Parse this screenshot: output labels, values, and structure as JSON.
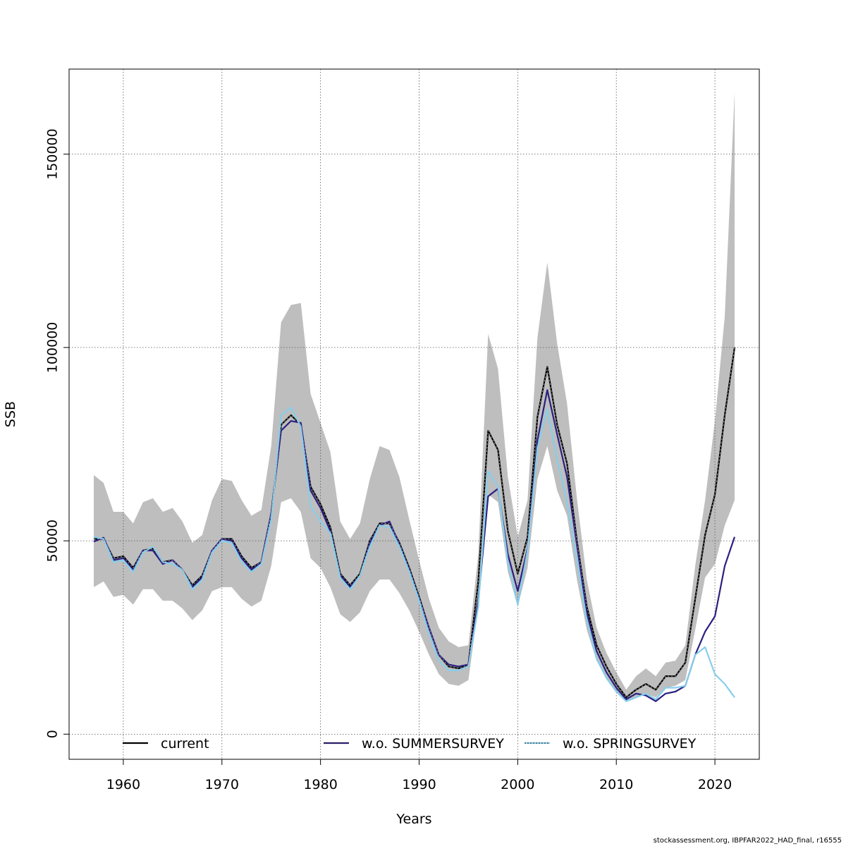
{
  "chart_data": {
    "type": "line",
    "title": "",
    "xlabel": "Years",
    "ylabel": "SSB",
    "xlim": [
      1954.5,
      2024.5
    ],
    "ylim": [
      -6500,
      172000
    ],
    "grid": true,
    "x_ticks": [
      1960,
      1970,
      1980,
      1990,
      2000,
      2010,
      2020
    ],
    "y_ticks": [
      0,
      50000,
      100000,
      150000
    ],
    "y_tick_labels": [
      "0",
      "50000",
      "100000",
      "150000"
    ],
    "legend_position": "bottom",
    "x": [
      1957,
      1958,
      1959,
      1960,
      1961,
      1962,
      1963,
      1964,
      1965,
      1966,
      1967,
      1968,
      1969,
      1970,
      1971,
      1972,
      1973,
      1974,
      1975,
      1976,
      1977,
      1978,
      1979,
      1980,
      1981,
      1982,
      1983,
      1984,
      1985,
      1986,
      1987,
      1988,
      1989,
      1990,
      1991,
      1992,
      1993,
      1994,
      1995,
      1996,
      1997,
      1998,
      1999,
      2000,
      2001,
      2002,
      2003,
      2004,
      2005,
      2006,
      2007,
      2008,
      2009,
      2010,
      2011,
      2012,
      2013,
      2014,
      2015,
      2016,
      2017,
      2018,
      2019,
      2020,
      2021,
      2022
    ],
    "confidence_band": {
      "name": "current",
      "color": "#bebebe",
      "upper": [
        67000,
        65000,
        57500,
        57500,
        54500,
        60000,
        61000,
        57500,
        58500,
        55000,
        49500,
        51500,
        60500,
        66000,
        65500,
        60500,
        56500,
        58000,
        74500,
        106500,
        111000,
        111500,
        88000,
        80500,
        73000,
        55000,
        50500,
        54500,
        66000,
        74500,
        73500,
        66500,
        55500,
        45000,
        35000,
        27500,
        24000,
        22500,
        23000,
        46500,
        103500,
        94500,
        66500,
        51000,
        60500,
        102500,
        122000,
        101000,
        85500,
        61000,
        40000,
        27500,
        21000,
        16000,
        11500,
        15000,
        17000,
        15000,
        18500,
        19000,
        23000,
        43500,
        60500,
        81000,
        108000,
        166000
      ],
      "lower": [
        38000,
        39500,
        35500,
        36000,
        33500,
        37500,
        37500,
        34500,
        34500,
        32500,
        29500,
        32000,
        37000,
        38000,
        38000,
        35000,
        33000,
        34500,
        43500,
        60000,
        61000,
        57500,
        45500,
        43000,
        38000,
        31000,
        29000,
        31500,
        37000,
        40000,
        40000,
        36500,
        32000,
        26500,
        20500,
        15500,
        13000,
        12500,
        14000,
        33000,
        62000,
        60000,
        42000,
        33000,
        43000,
        66000,
        74500,
        63000,
        56500,
        40000,
        27000,
        19000,
        14500,
        11000,
        8500,
        9500,
        10500,
        9500,
        12000,
        12500,
        14000,
        27000,
        40500,
        44000,
        54000,
        60500
      ]
    },
    "series": [
      {
        "name": "current",
        "color": "#000000",
        "values": [
          50500,
          50500,
          45500,
          46000,
          43000,
          47500,
          48000,
          44500,
          45000,
          42500,
          38500,
          41000,
          47500,
          50500,
          50500,
          46000,
          43000,
          44500,
          57000,
          80000,
          82500,
          80000,
          64000,
          59500,
          53500,
          41500,
          38500,
          41500,
          50000,
          54500,
          54500,
          49500,
          43000,
          35500,
          27500,
          20500,
          17500,
          17000,
          18000,
          39500,
          78500,
          73500,
          52500,
          41500,
          51000,
          82000,
          95000,
          80000,
          70000,
          50000,
          33000,
          23000,
          17500,
          13000,
          9500,
          11500,
          13000,
          11500,
          15000,
          15000,
          18500,
          35000,
          51500,
          62000,
          82500,
          100000
        ]
      },
      {
        "name": "w.o. SUMMERSURVEY",
        "color": "#2b1f80",
        "values": [
          49800,
          50800,
          45000,
          45500,
          42500,
          47500,
          47500,
          44000,
          45000,
          42500,
          38000,
          40500,
          47500,
          50500,
          50000,
          45500,
          42500,
          44500,
          57000,
          78500,
          81000,
          80500,
          63000,
          58500,
          52500,
          41000,
          38000,
          41000,
          49500,
          54000,
          55000,
          49000,
          42500,
          35000,
          27500,
          20500,
          18000,
          17500,
          18000,
          34500,
          61500,
          63500,
          46500,
          37000,
          48000,
          76000,
          89000,
          77500,
          66500,
          49000,
          31500,
          21500,
          16000,
          12000,
          9000,
          10500,
          10000,
          8500,
          10500,
          11000,
          12500,
          20500,
          26500,
          30500,
          43500,
          51000
        ]
      },
      {
        "name": "w.o. SPRINGSURVEY",
        "color": "#87ceeb",
        "values": [
          51000,
          50500,
          44500,
          45000,
          42000,
          47000,
          48500,
          44500,
          44000,
          42500,
          37500,
          40000,
          47000,
          50000,
          49500,
          44500,
          42000,
          44000,
          55500,
          82500,
          84500,
          79500,
          59000,
          55000,
          52000,
          40500,
          37500,
          41000,
          48500,
          54000,
          53500,
          48500,
          42000,
          34500,
          26000,
          19000,
          16500,
          16500,
          17500,
          33000,
          68000,
          64000,
          44500,
          33500,
          47500,
          74000,
          84000,
          71000,
          60000,
          45000,
          29500,
          19500,
          14500,
          11000,
          8500,
          9500,
          10500,
          9000,
          12000,
          12000,
          12500,
          20500,
          22500,
          15500,
          13000,
          9500
        ]
      }
    ],
    "legend": [
      "current",
      "w.o. SUMMERSURVEY",
      "w.o. SPRINGSURVEY"
    ]
  },
  "footer": "stockassessment.org, IBPFAR2022_HAD_final, r16555"
}
